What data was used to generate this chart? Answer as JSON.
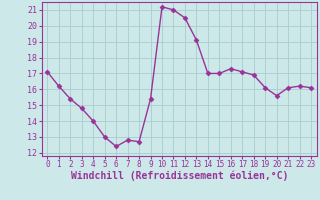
{
  "x": [
    0,
    1,
    2,
    3,
    4,
    5,
    6,
    7,
    8,
    9,
    10,
    11,
    12,
    13,
    14,
    15,
    16,
    17,
    18,
    19,
    20,
    21,
    22,
    23
  ],
  "y": [
    17.1,
    16.2,
    15.4,
    14.8,
    14.0,
    13.0,
    12.4,
    12.8,
    12.7,
    15.4,
    21.2,
    21.0,
    20.5,
    19.1,
    17.0,
    17.0,
    17.3,
    17.1,
    16.9,
    16.1,
    15.6,
    16.1,
    16.2,
    16.1
  ],
  "line_color": "#993399",
  "marker": "D",
  "markersize": 2.5,
  "linewidth": 1.0,
  "bg_color": "#cce8e8",
  "grid_color": "#aacccc",
  "xlabel": "Windchill (Refroidissement éolien,°C)",
  "xlabel_fontsize": 7.0,
  "xtick_fontsize": 5.5,
  "ytick_fontsize": 6.0,
  "ylim": [
    11.8,
    21.5
  ],
  "yticks": [
    12,
    13,
    14,
    15,
    16,
    17,
    18,
    19,
    20,
    21
  ],
  "xlim": [
    -0.5,
    23.5
  ],
  "xticks": [
    0,
    1,
    2,
    3,
    4,
    5,
    6,
    7,
    8,
    9,
    10,
    11,
    12,
    13,
    14,
    15,
    16,
    17,
    18,
    19,
    20,
    21,
    22,
    23
  ],
  "tick_color": "#993399",
  "spine_color": "#993399",
  "xlabel_color": "#993399"
}
